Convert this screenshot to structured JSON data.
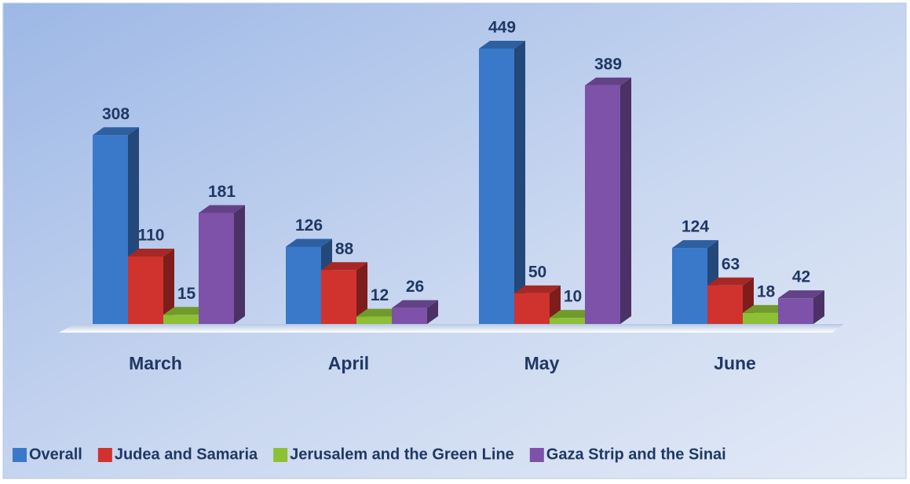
{
  "chart_data": {
    "type": "bar3d",
    "categories": [
      "March",
      "April",
      "May",
      "June"
    ],
    "series": [
      {
        "name": "Overall",
        "color": "#3a78c9",
        "values": [
          308,
          126,
          449,
          124
        ]
      },
      {
        "name": "Judea and Samaria",
        "color": "#d0322e",
        "values": [
          110,
          88,
          50,
          63
        ]
      },
      {
        "name": "Jerusalem and the Green Line",
        "color": "#8dc035",
        "values": [
          15,
          12,
          10,
          18
        ]
      },
      {
        "name": "Gaza Strip and the Sinai",
        "color": "#7d52a8",
        "values": [
          181,
          26,
          389,
          42
        ]
      }
    ],
    "legend": "bottom"
  }
}
